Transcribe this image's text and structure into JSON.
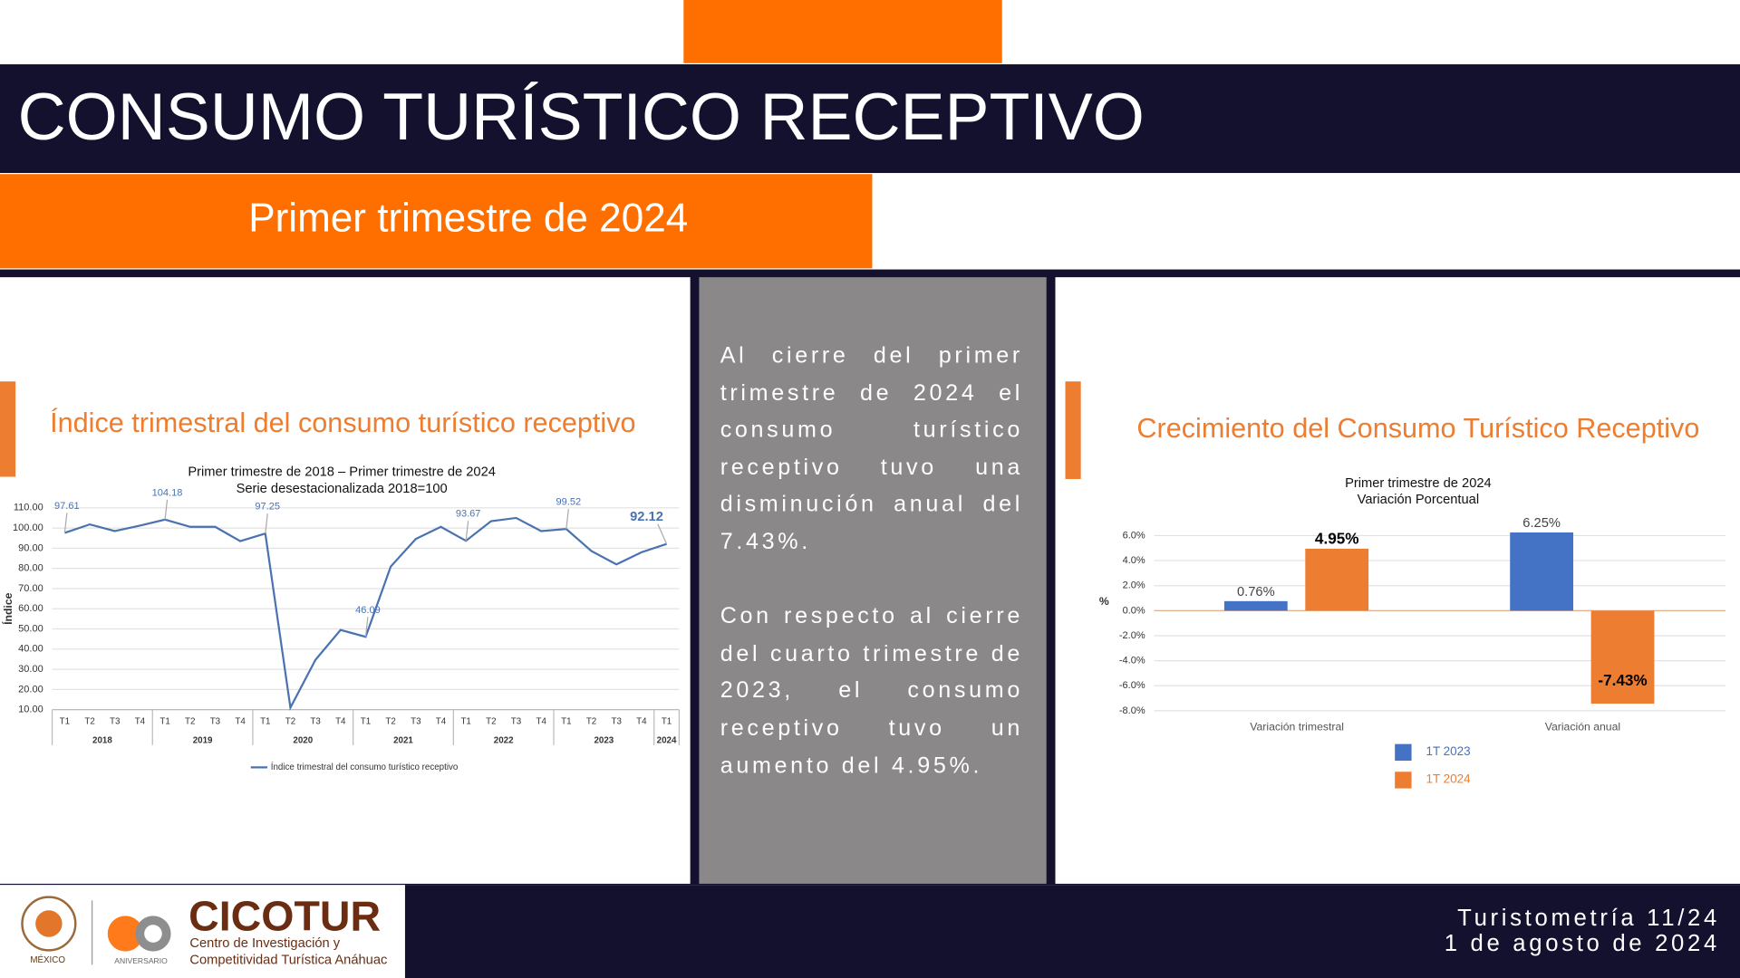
{
  "header": {
    "title": "CONSUMO TURÍSTICO RECEPTIVO",
    "subtitle": "Primer trimestre de 2024"
  },
  "text": {
    "paragraphs": [
      "Al cierre del primer trimestre de 2024 el consumo turístico receptivo tuvo una disminución anual del 7.43%.",
      "Con respecto al cierre del cuarto trimestre de 2023, el consumo receptivo tuvo un aumento del 4.95%."
    ]
  },
  "chart_data": [
    {
      "type": "line",
      "title": "Índice trimestral del consumo turístico receptivo",
      "subtitle": [
        "Primer trimestre de 2018 – Primer trimestre de 2024",
        "Serie desestacionalizada 2018=100"
      ],
      "y_label": "Índice",
      "categories": [
        "T1",
        "T2",
        "T3",
        "T4",
        "T1",
        "T2",
        "T3",
        "T4",
        "T1",
        "T2",
        "T3",
        "T4",
        "T1",
        "T2",
        "T3",
        "T4",
        "T1",
        "T2",
        "T3",
        "T4",
        "T1",
        "T2",
        "T3",
        "T4",
        "T1"
      ],
      "x_groups": [
        "2018",
        "2019",
        "2020",
        "2021",
        "2022",
        "2023",
        "2024"
      ],
      "series": [
        {
          "name": "Índice trimestral del consumo turístico receptivo",
          "color": "#4a72b0",
          "values": [
            97.61,
            101.8,
            98.5,
            101.2,
            104.18,
            100.6,
            100.6,
            93.5,
            97.25,
            11,
            34.7,
            49.5,
            46.09,
            80.9,
            94.6,
            100.6,
            93.67,
            103.4,
            105,
            98.5,
            99.52,
            88.6,
            82,
            88,
            92.12
          ],
          "value_labels": [
            "97.61",
            null,
            null,
            null,
            "104.18",
            null,
            null,
            null,
            "97.25",
            null,
            null,
            null,
            "46.09",
            null,
            null,
            null,
            "93.67",
            null,
            null,
            null,
            "99.52",
            null,
            null,
            null,
            "92.12"
          ]
        }
      ],
      "ylim": [
        10,
        110
      ],
      "yticks": [
        {
          "value": 10,
          "label": "10.00"
        },
        {
          "value": 20,
          "label": "20.00"
        },
        {
          "value": 30,
          "label": "30.00"
        },
        {
          "value": 40,
          "label": "40.00"
        },
        {
          "value": 50,
          "label": "50.00"
        },
        {
          "value": 60,
          "label": "60.00"
        },
        {
          "value": 70,
          "label": "70.00"
        },
        {
          "value": 80,
          "label": "80.00"
        },
        {
          "value": 90,
          "label": "90.00"
        },
        {
          "value": 100,
          "label": "100.00"
        },
        {
          "value": 110,
          "label": "110.00"
        }
      ],
      "grid": true
    },
    {
      "type": "bar",
      "title": "Crecimiento del Consumo Turístico Receptivo",
      "subtitle": [
        "Primer trimestre de 2024",
        "Variación Porcentual"
      ],
      "y_label": "%",
      "categories": [
        "Variación trimestral",
        "Variación anual"
      ],
      "series": [
        {
          "name": "1T 2023",
          "color": "#4472c4",
          "values": [
            0.76,
            6.25
          ],
          "value_labels": [
            "0.76%",
            "6.25%"
          ]
        },
        {
          "name": "1T 2024",
          "color": "#ed7d31",
          "values": [
            4.95,
            -7.43
          ],
          "value_labels": [
            "4.95%",
            "-7.43%"
          ]
        }
      ],
      "ylim": [
        -8,
        6
      ],
      "yticks": [
        {
          "value": -8,
          "label": "-8.0%"
        },
        {
          "value": -6,
          "label": "-6.0%"
        },
        {
          "value": -4,
          "label": "-4.0%"
        },
        {
          "value": -2,
          "label": "-2.0%"
        },
        {
          "value": 0,
          "label": "0.0%"
        },
        {
          "value": 2,
          "label": "2.0%"
        },
        {
          "value": 4,
          "label": "4.0%"
        },
        {
          "value": 6,
          "label": "6.0%"
        }
      ],
      "grid": true
    }
  ],
  "footer": {
    "logo_text": "MÉXICO",
    "anniversary": "ANIVERSARIO",
    "brand": "CICOTUR",
    "brand_lines": [
      "Centro de Investigación y",
      "Competitividad Turística Anáhuac"
    ],
    "issue": "Turistometría 11/24",
    "date": "1 de agosto de 2024"
  }
}
